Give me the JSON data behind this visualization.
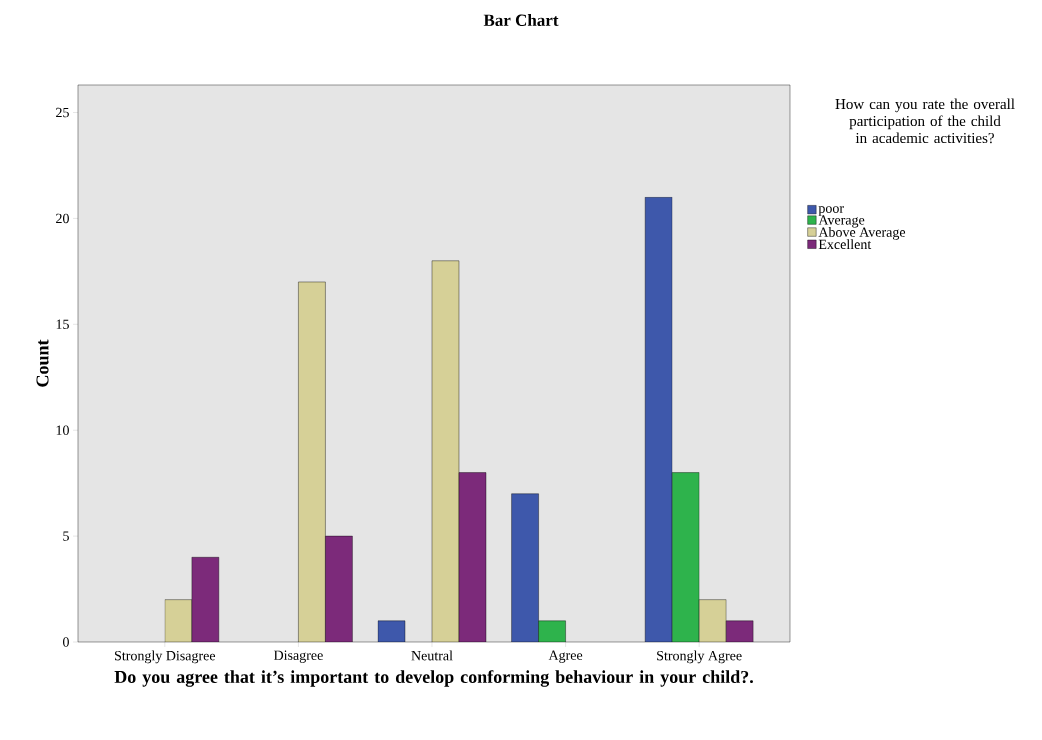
{
  "chart_data": {
    "type": "bar",
    "title": "Bar Chart",
    "xlabel": "Do you agree that it’s important to develop conforming behaviour in your child?.",
    "ylabel": "Count",
    "legend_title": "How can you rate the overall participation of the child in academic activities?",
    "categories": [
      "Strongly Disagree",
      "Disagree",
      "Neutral",
      "Agree",
      "Strongly Agree"
    ],
    "series": [
      {
        "name": "poor",
        "color": "#3e58ab",
        "values": [
          null,
          null,
          1,
          7,
          21
        ]
      },
      {
        "name": "Average",
        "color": "#2eb34c",
        "values": [
          null,
          null,
          null,
          1,
          8
        ]
      },
      {
        "name": "Above Average",
        "color": "#d6d097",
        "values": [
          2,
          17,
          18,
          null,
          2
        ]
      },
      {
        "name": "Excellent",
        "color": "#7c2a7a",
        "values": [
          4,
          5,
          8,
          null,
          1
        ]
      }
    ],
    "ylim": [
      0,
      26.3
    ],
    "yticks": [
      0,
      5,
      10,
      15,
      20,
      25
    ],
    "grid": false,
    "legend": "right"
  }
}
